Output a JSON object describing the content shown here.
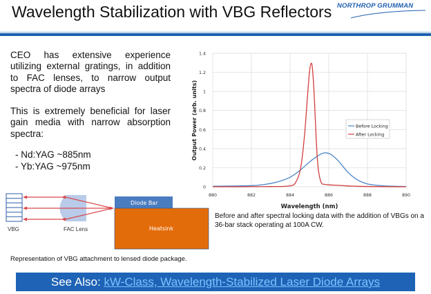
{
  "header": {
    "title": "Wavelength Stabilization with VBG Reflectors",
    "logo_text": "NORTHROP GRUMMAN"
  },
  "body": {
    "paragraph1": "CEO has extensive experience utilizing external gratings, in addition to FAC lenses, to narrow output spectra of diode arrays",
    "paragraph2": "This is extremely beneficial for laser gain media with narrow absorption spectra:",
    "bullets": [
      "- Nd:YAG ~885nm",
      "- Yb:YAG ~975nm"
    ]
  },
  "diagram": {
    "labels": {
      "vbg": "VBG",
      "fac_lens": "FAC Lens",
      "diode_bar": "Diode Bar",
      "heatsink": "Heatsink"
    },
    "colors": {
      "diode_bar": "#4a7cc0",
      "heatsink": "#e36c0a",
      "lens": "#b9cbe8",
      "beam": "#d9474a",
      "vbg": "#2e5ea8"
    },
    "caption": "Representation of VBG attachment to lensed diode package."
  },
  "chart_caption": "Before and after spectral locking data with the addition of VBGs on a 36-bar stack operating at 100A CW.",
  "footer": {
    "prefix": "See Also: ",
    "link_text": "kW-Class, Wavelength-Stabilized Laser Diode Arrays"
  },
  "chart_data": {
    "type": "line",
    "title": "",
    "xlabel": "Wavelength (nm)",
    "ylabel": "Output Power (arb. units)",
    "xlim": [
      880,
      890
    ],
    "ylim": [
      0,
      1.4
    ],
    "xticks": [
      "880",
      "882",
      "884",
      "886",
      "888",
      "890"
    ],
    "yticks": [
      "0",
      "0.2",
      "0.4",
      "0.6",
      "0.8",
      "1",
      "1.2",
      "1.4"
    ],
    "grid": true,
    "legend": "right",
    "series": [
      {
        "name": "Before Locking",
        "color": "#4a86c8",
        "x": [
          880,
          881,
          882,
          882.5,
          883,
          883.5,
          884,
          884.5,
          885,
          885.4,
          885.75,
          886.1,
          886.5,
          887,
          887.5,
          888,
          888.5,
          889,
          890
        ],
        "y": [
          0.005,
          0.008,
          0.012,
          0.02,
          0.035,
          0.06,
          0.1,
          0.17,
          0.26,
          0.32,
          0.355,
          0.34,
          0.27,
          0.15,
          0.07,
          0.03,
          0.015,
          0.008,
          0.003
        ]
      },
      {
        "name": "After Locking",
        "color": "#d23c3c",
        "x": [
          880,
          883,
          884,
          884.3,
          884.55,
          884.75,
          884.9,
          885.0,
          885.08,
          885.15,
          885.25,
          885.35,
          885.45,
          885.6,
          885.8,
          886.5,
          887.5,
          890
        ],
        "y": [
          0.0,
          0.002,
          0.01,
          0.05,
          0.2,
          0.55,
          0.95,
          1.2,
          1.29,
          1.25,
          0.95,
          0.5,
          0.2,
          0.05,
          0.025,
          0.015,
          0.005,
          0.0
        ]
      }
    ]
  }
}
